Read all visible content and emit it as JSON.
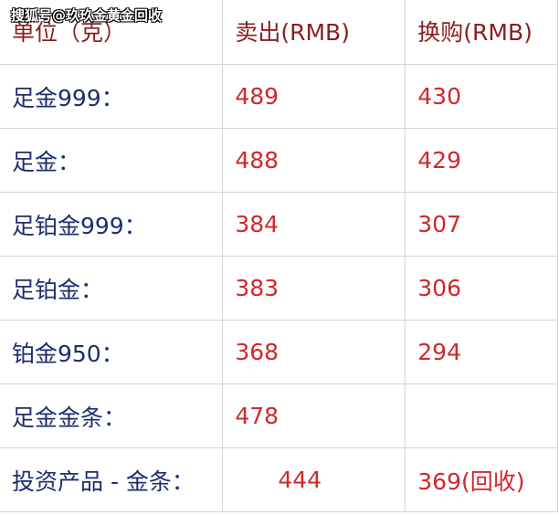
{
  "watermark": "搜狐号@玖玖金黄金回收",
  "header": [
    "单位（克）",
    "卖出(RMB)",
    "换购(RMB)"
  ],
  "rows": [
    [
      "足金999：",
      "489",
      "430"
    ],
    [
      "足金：",
      "488",
      "429"
    ],
    [
      "足铂金999：",
      "384",
      "307"
    ],
    [
      "足铂金：",
      "383",
      "306"
    ],
    [
      "铂金950：",
      "368",
      "294"
    ],
    [
      "足金金条：",
      "478",
      ""
    ],
    [
      "投资产品 - 金条：",
      "444",
      "369(回收)"
    ]
  ],
  "colors": {
    "label": "#1f2d6e",
    "value": "#d0282c",
    "header": "#8a1f1f"
  }
}
